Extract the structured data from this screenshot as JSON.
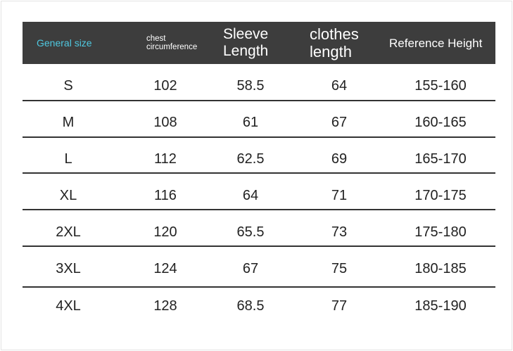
{
  "table": {
    "headers": [
      "General size",
      "chest circumference",
      "Sleeve Length",
      "clothes length",
      "Reference Height"
    ],
    "rows": [
      [
        "S",
        "102",
        "58.5",
        "64",
        "155-160"
      ],
      [
        "M",
        "108",
        "61",
        "67",
        "160-165"
      ],
      [
        "L",
        "112",
        "62.5",
        "69",
        "165-170"
      ],
      [
        "XL",
        "116",
        "64",
        "71",
        "170-175"
      ],
      [
        "2XL",
        "120",
        "65.5",
        "73",
        "175-180"
      ],
      [
        "3XL",
        "124",
        "67",
        "75",
        "180-185"
      ],
      [
        "4XL",
        "128",
        "68.5",
        "77",
        "185-190"
      ]
    ]
  },
  "colors": {
    "header_bg": "#3d3d3d",
    "header_accent": "#4fc8e0",
    "header_text": "#ffffff"
  }
}
